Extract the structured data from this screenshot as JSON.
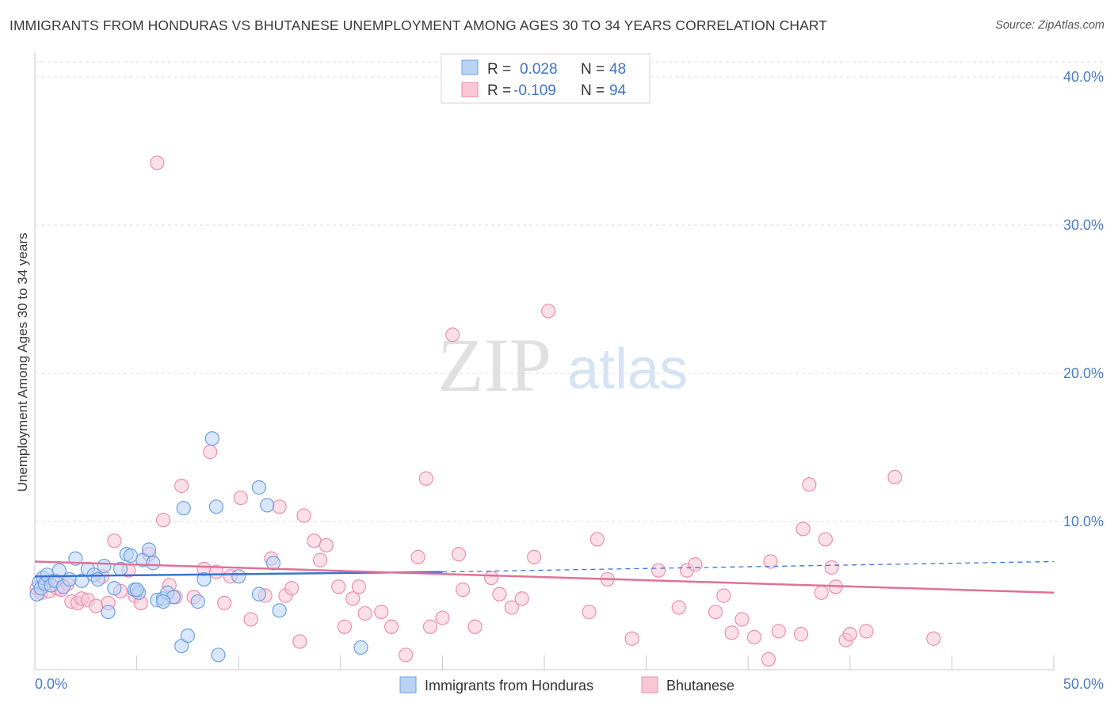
{
  "title": "IMMIGRANTS FROM HONDURAS VS BHUTANESE UNEMPLOYMENT AMONG AGES 30 TO 34 YEARS CORRELATION CHART",
  "source": "Source: ZipAtlas.com",
  "watermark": {
    "zip": "ZIP",
    "atlas": "atlas"
  },
  "colors": {
    "blue_fill": "#b9d3f5",
    "blue_stroke": "#6f9fe0",
    "blue_line": "#3a74d0",
    "pink_fill": "#f9c6d6",
    "pink_stroke": "#ec8fab",
    "pink_line": "#e27098",
    "grid": "#dcdcdc",
    "tick_text": "#4a7cc4"
  },
  "legend": {
    "row1": {
      "r_label": "R =",
      "r_value": "0.028",
      "n_label": "N =",
      "n_value": "48"
    },
    "row2": {
      "r_label": "R =",
      "r_value": "-0.109",
      "n_label": "N =",
      "n_value": "94"
    }
  },
  "chart_data": {
    "type": "scatter",
    "title": "IMMIGRANTS FROM HONDURAS VS BHUTANESE UNEMPLOYMENT AMONG AGES 30 TO 34 YEARS CORRELATION CHART",
    "xlabel": "",
    "ylabel": "Unemployment Among Ages 30 to 34 years",
    "xlim": [
      0,
      50
    ],
    "ylim": [
      0,
      40
    ],
    "x_tick_labels": [
      "0.0%",
      "50.0%"
    ],
    "y_tick_labels": [
      "10.0%",
      "20.0%",
      "30.0%",
      "40.0%"
    ],
    "y_ticks": [
      10,
      20,
      30,
      40
    ],
    "series": [
      {
        "name": "Immigrants from Honduras",
        "color": "blue",
        "trend": {
          "x0": 0,
          "y0": 6.3,
          "x1": 20,
          "y1": 6.6,
          "dash_x1": 50,
          "dash_y1": 7.3
        },
        "points": [
          [
            0.1,
            5.1
          ],
          [
            0.2,
            5.9
          ],
          [
            0.3,
            5.5
          ],
          [
            0.4,
            6.2
          ],
          [
            0.5,
            5.8
          ],
          [
            0.6,
            6.4
          ],
          [
            0.8,
            5.7
          ],
          [
            1.0,
            6.0
          ],
          [
            1.2,
            6.7
          ],
          [
            1.4,
            5.6
          ],
          [
            1.7,
            6.1
          ],
          [
            2.0,
            7.5
          ],
          [
            2.3,
            6.0
          ],
          [
            2.6,
            6.8
          ],
          [
            2.9,
            6.4
          ],
          [
            3.1,
            6.1
          ],
          [
            3.4,
            7.0
          ],
          [
            3.6,
            3.9
          ],
          [
            3.9,
            5.5
          ],
          [
            4.2,
            6.8
          ],
          [
            4.5,
            7.8
          ],
          [
            4.7,
            7.7
          ],
          [
            4.9,
            5.4
          ],
          [
            5.1,
            5.2
          ],
          [
            5.3,
            7.4
          ],
          [
            5.6,
            8.1
          ],
          [
            5.8,
            7.2
          ],
          [
            6.0,
            4.7
          ],
          [
            6.3,
            4.8
          ],
          [
            6.5,
            5.2
          ],
          [
            6.8,
            4.9
          ],
          [
            7.2,
            1.6
          ],
          [
            7.5,
            2.3
          ],
          [
            8.0,
            4.6
          ],
          [
            8.3,
            6.1
          ],
          [
            8.7,
            15.6
          ],
          [
            9.0,
            1.0
          ],
          [
            8.9,
            11.0
          ],
          [
            7.3,
            10.9
          ],
          [
            10.0,
            6.3
          ],
          [
            11.0,
            12.3
          ],
          [
            11.4,
            11.1
          ],
          [
            11.0,
            5.1
          ],
          [
            11.7,
            7.2
          ],
          [
            12.0,
            4.0
          ],
          [
            16.0,
            1.5
          ],
          [
            6.3,
            4.6
          ],
          [
            5.0,
            5.4
          ]
        ]
      },
      {
        "name": "Bhutanese",
        "color": "pink",
        "trend": {
          "x0": 0,
          "y0": 7.3,
          "x1": 50,
          "y1": 5.2
        },
        "points": [
          [
            0.1,
            5.5
          ],
          [
            0.3,
            5.2
          ],
          [
            0.5,
            5.8
          ],
          [
            0.7,
            5.3
          ],
          [
            0.9,
            6.0
          ],
          [
            1.1,
            5.5
          ],
          [
            1.3,
            5.4
          ],
          [
            1.6,
            5.8
          ],
          [
            1.8,
            4.6
          ],
          [
            2.1,
            4.5
          ],
          [
            2.3,
            4.8
          ],
          [
            2.6,
            4.7
          ],
          [
            3.0,
            4.3
          ],
          [
            3.3,
            6.3
          ],
          [
            3.6,
            4.5
          ],
          [
            3.9,
            8.7
          ],
          [
            4.2,
            5.3
          ],
          [
            4.6,
            6.7
          ],
          [
            4.9,
            5.0
          ],
          [
            5.2,
            4.5
          ],
          [
            5.6,
            7.8
          ],
          [
            6.0,
            34.2
          ],
          [
            6.3,
            10.1
          ],
          [
            6.6,
            5.7
          ],
          [
            6.9,
            4.9
          ],
          [
            7.2,
            12.4
          ],
          [
            7.8,
            4.9
          ],
          [
            8.3,
            6.8
          ],
          [
            8.6,
            14.7
          ],
          [
            8.9,
            6.6
          ],
          [
            9.3,
            4.5
          ],
          [
            9.6,
            6.3
          ],
          [
            10.1,
            11.6
          ],
          [
            10.6,
            3.4
          ],
          [
            11.3,
            5.0
          ],
          [
            11.6,
            7.5
          ],
          [
            12.0,
            11.0
          ],
          [
            12.3,
            5.0
          ],
          [
            12.6,
            5.5
          ],
          [
            13.0,
            1.9
          ],
          [
            13.2,
            10.4
          ],
          [
            13.7,
            8.7
          ],
          [
            14.0,
            7.4
          ],
          [
            14.3,
            8.4
          ],
          [
            14.9,
            5.6
          ],
          [
            15.2,
            2.9
          ],
          [
            15.6,
            4.8
          ],
          [
            15.9,
            5.6
          ],
          [
            16.2,
            3.8
          ],
          [
            17.0,
            3.9
          ],
          [
            17.5,
            2.9
          ],
          [
            18.2,
            1.0
          ],
          [
            18.8,
            7.6
          ],
          [
            19.2,
            12.9
          ],
          [
            19.4,
            2.9
          ],
          [
            20.0,
            3.5
          ],
          [
            20.5,
            22.6
          ],
          [
            20.8,
            7.8
          ],
          [
            21.0,
            5.4
          ],
          [
            21.6,
            2.9
          ],
          [
            22.4,
            6.2
          ],
          [
            22.8,
            5.1
          ],
          [
            23.4,
            4.2
          ],
          [
            23.9,
            4.8
          ],
          [
            24.5,
            7.6
          ],
          [
            25.2,
            24.2
          ],
          [
            27.2,
            3.9
          ],
          [
            27.6,
            8.8
          ],
          [
            28.1,
            6.1
          ],
          [
            29.3,
            2.1
          ],
          [
            30.6,
            6.7
          ],
          [
            31.6,
            4.2
          ],
          [
            32.0,
            6.7
          ],
          [
            32.4,
            7.1
          ],
          [
            33.4,
            3.9
          ],
          [
            33.8,
            5.0
          ],
          [
            34.2,
            2.5
          ],
          [
            34.7,
            3.4
          ],
          [
            35.3,
            2.2
          ],
          [
            36.0,
            0.7
          ],
          [
            36.1,
            7.3
          ],
          [
            36.5,
            2.6
          ],
          [
            37.6,
            2.4
          ],
          [
            37.7,
            9.5
          ],
          [
            38.0,
            12.5
          ],
          [
            38.6,
            5.2
          ],
          [
            38.8,
            8.8
          ],
          [
            39.1,
            6.9
          ],
          [
            39.3,
            5.6
          ],
          [
            39.8,
            2.0
          ],
          [
            40.8,
            2.6
          ],
          [
            42.2,
            13.0
          ],
          [
            44.1,
            2.1
          ],
          [
            40.0,
            2.4
          ]
        ]
      }
    ]
  },
  "bottom_legend": {
    "series1": "Immigrants from Honduras",
    "series2": "Bhutanese"
  }
}
